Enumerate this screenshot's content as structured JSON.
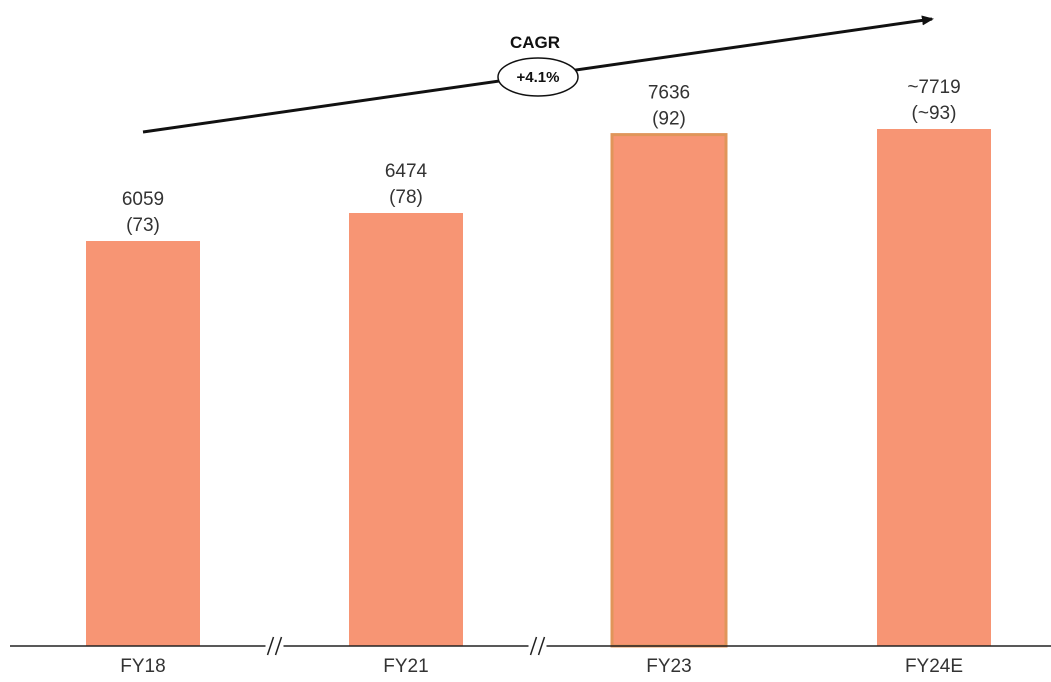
{
  "chart_data": {
    "type": "bar",
    "categories": [
      "FY18",
      "FY21",
      "FY23",
      "FY24E"
    ],
    "values": [
      6059,
      6474,
      7636,
      7719
    ],
    "value_labels": [
      "6059",
      "6474",
      "7636",
      "~7719"
    ],
    "secondary_labels": [
      "(73)",
      "(78)",
      "(92)",
      "(~93)"
    ],
    "title": "",
    "xlabel": "",
    "ylabel": "",
    "ylim": [
      0,
      7719
    ],
    "grid": false,
    "legend": "none",
    "axis_breaks_after": [
      "FY18",
      "FY21"
    ],
    "highlighted_category": "FY23",
    "annotation": {
      "label": "CAGR",
      "value": "+4.1%"
    },
    "colors": {
      "bar": "#f79574",
      "bar_highlight_border": "#e0955a",
      "axis": "#222222",
      "arrow": "#111111",
      "text": "#333333"
    }
  }
}
